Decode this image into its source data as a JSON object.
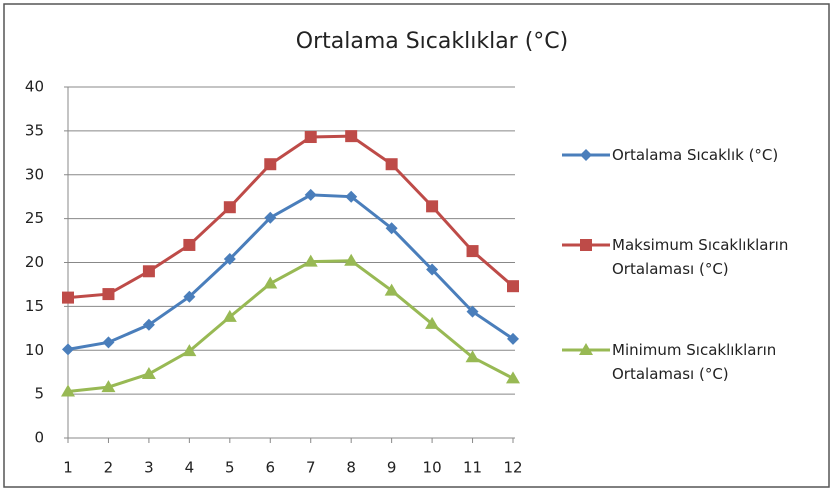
{
  "chart_data": {
    "type": "line",
    "title": "Ortalama Sıcaklıklar (°C)",
    "categories": [
      "1",
      "2",
      "3",
      "4",
      "5",
      "6",
      "7",
      "8",
      "9",
      "10",
      "11",
      "12"
    ],
    "series": [
      {
        "name": "Ortalama Sıcaklık (°C)",
        "color": "#4a7ebb",
        "marker": "diamond",
        "values": [
          10.1,
          10.9,
          12.9,
          16.1,
          20.4,
          25.1,
          27.7,
          27.5,
          23.9,
          19.2,
          14.4,
          11.3
        ]
      },
      {
        "name": "Maksimum Sıcaklıkların Ortalaması (°C)",
        "color": "#be4b48",
        "marker": "square",
        "values": [
          16.0,
          16.4,
          19.0,
          22.0,
          26.3,
          31.2,
          34.3,
          34.4,
          31.2,
          26.4,
          21.3,
          17.3
        ]
      },
      {
        "name": "Minimum Sıcaklıkların Ortalaması (°C)",
        "color": "#98b954",
        "marker": "triangle",
        "values": [
          5.3,
          5.8,
          7.3,
          9.9,
          13.8,
          17.6,
          20.1,
          20.2,
          16.8,
          13.0,
          9.2,
          6.8
        ]
      }
    ],
    "ylim": [
      0,
      40
    ],
    "yticks": [
      0,
      5,
      10,
      15,
      20,
      25,
      30,
      35,
      40
    ],
    "grid": true,
    "legend": "right"
  }
}
